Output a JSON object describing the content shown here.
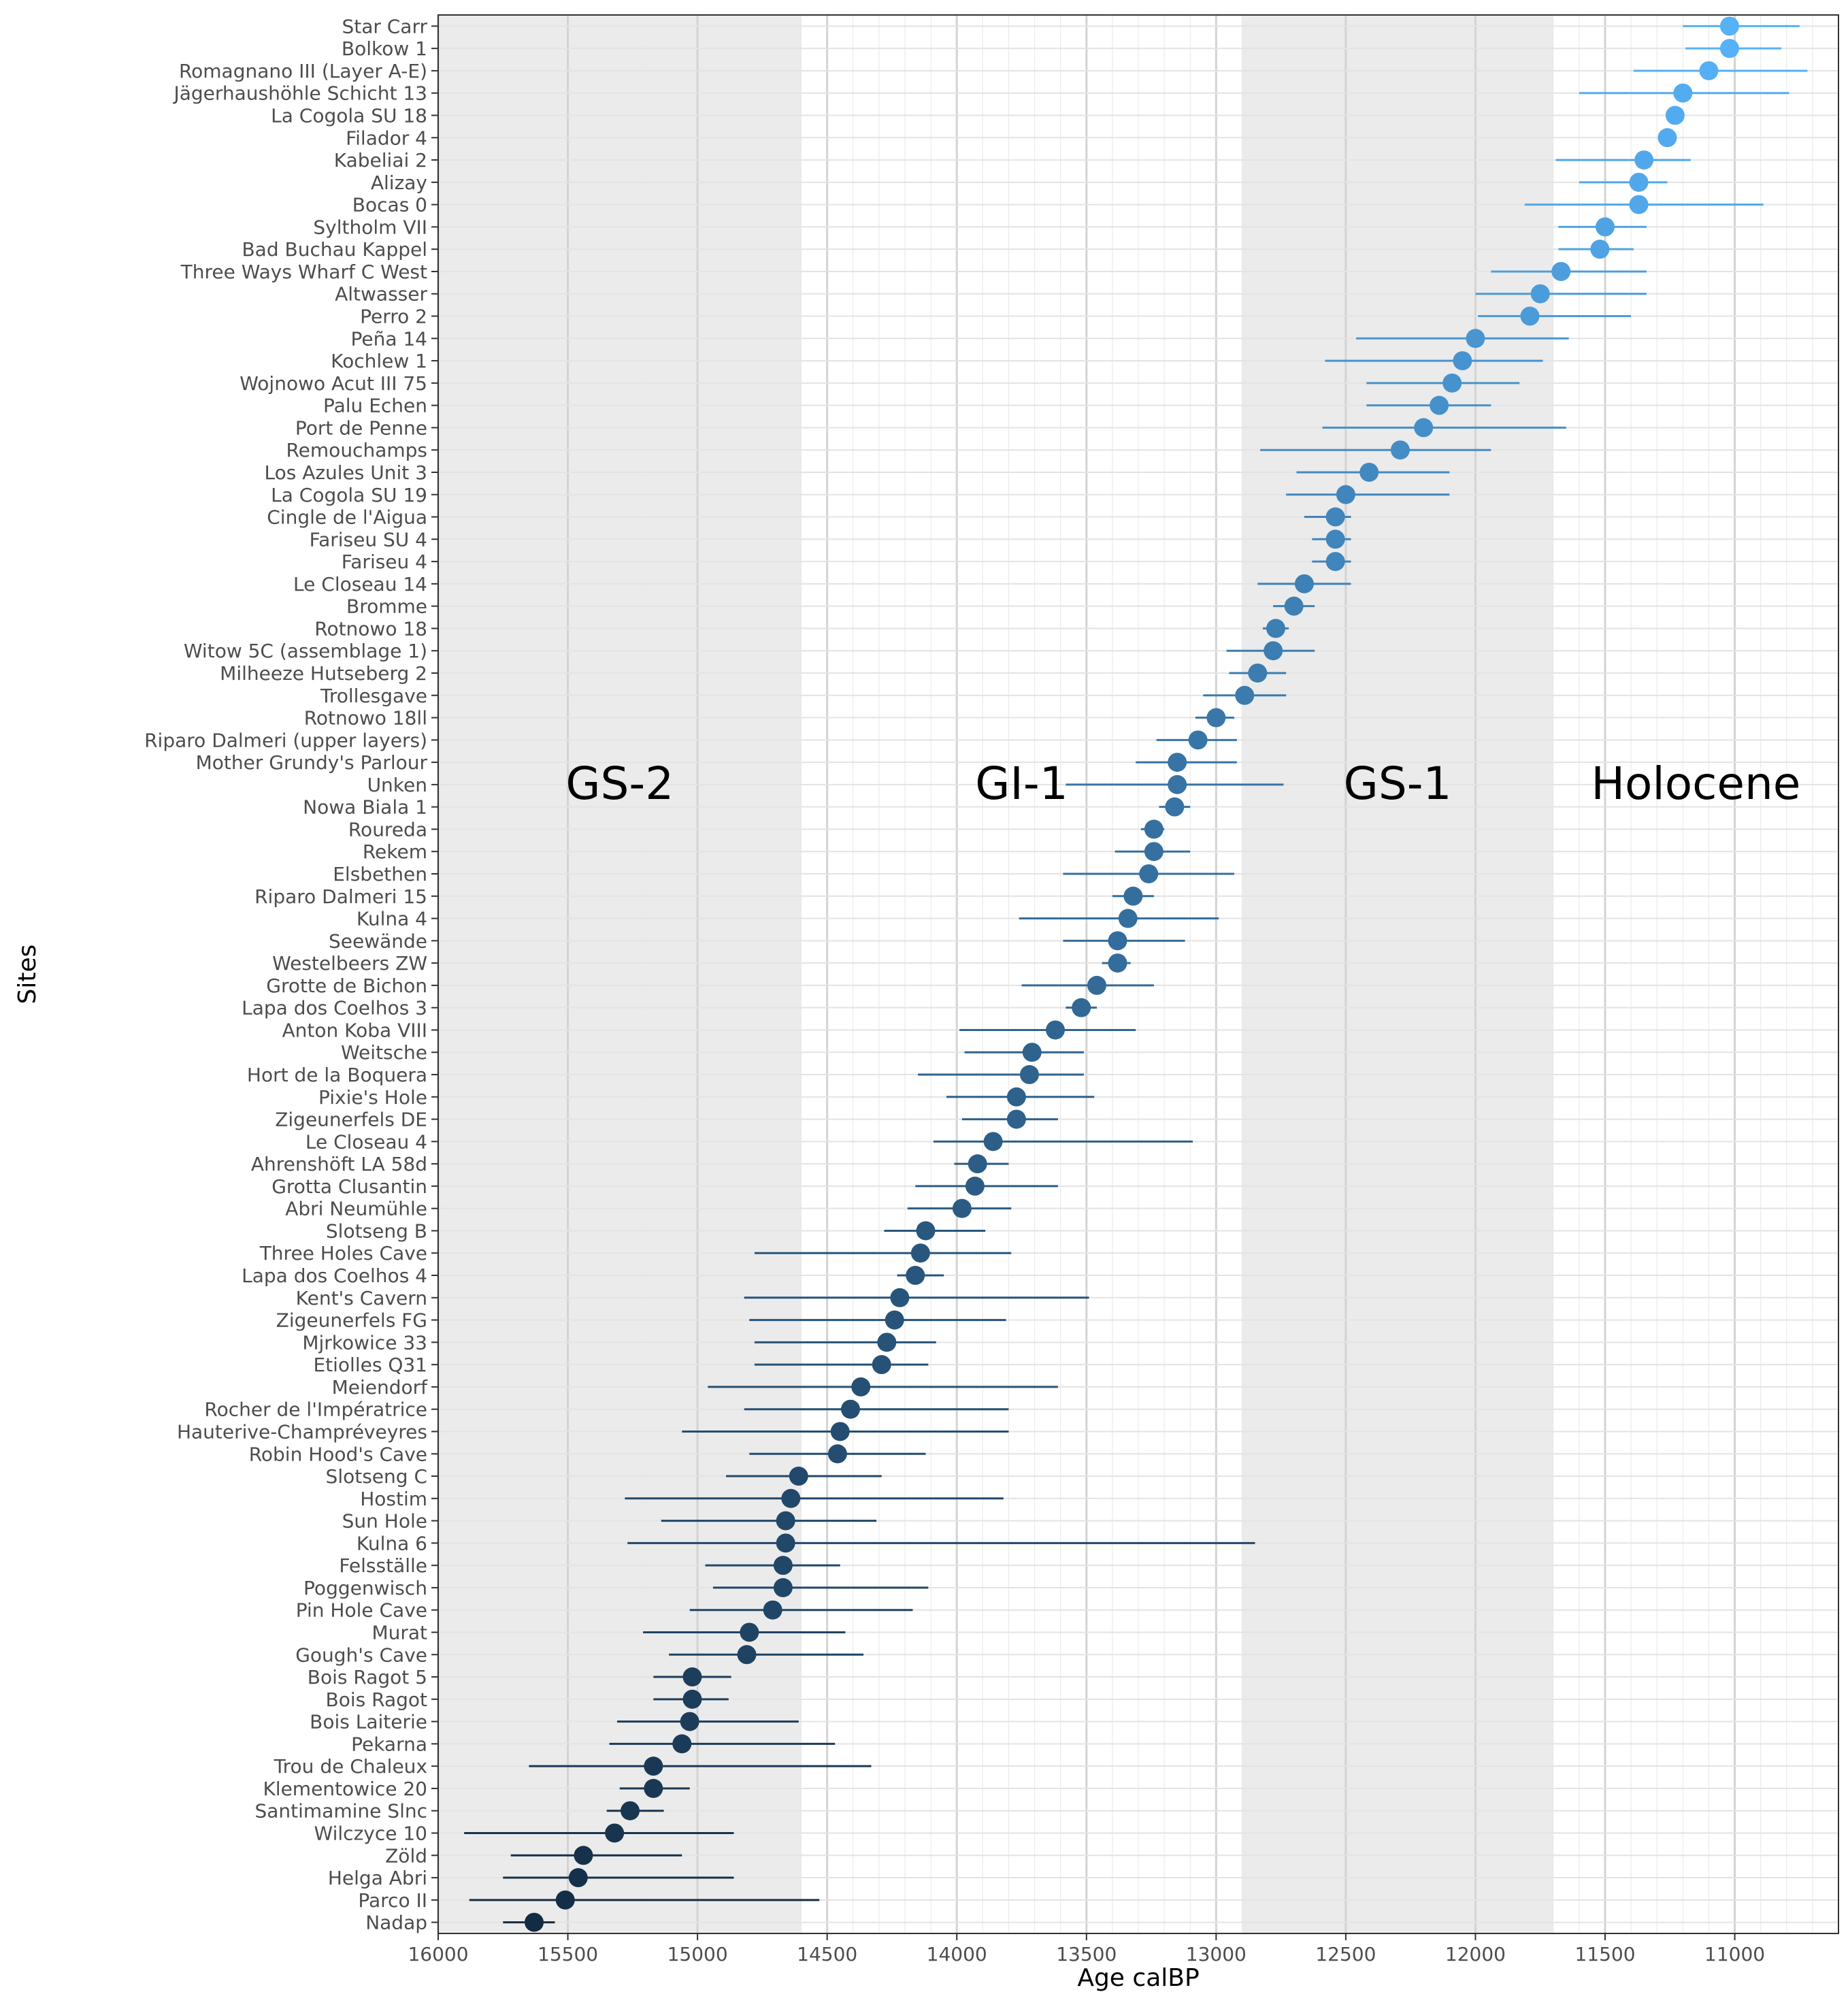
{
  "chart_data": {
    "type": "scatter",
    "title": "",
    "xlabel": "Age calBP",
    "ylabel": "Sites",
    "x_reversed": true,
    "xlim": [
      16000,
      10600
    ],
    "x_ticks": [
      16000,
      15500,
      15000,
      14500,
      14000,
      13500,
      13000,
      12500,
      12000,
      11500,
      11000
    ],
    "grid": true,
    "color_range": [
      "#132b43",
      "#56b1f7"
    ],
    "bands": [
      {
        "label": "GS-2",
        "from": 16000,
        "to": 14600,
        "shaded": true
      },
      {
        "label": "GI-1",
        "from": 14600,
        "to": 12900,
        "shaded": false
      },
      {
        "label": "GS-1",
        "from": 12900,
        "to": 11700,
        "shaded": true
      },
      {
        "label": "Holocene",
        "from": 11700,
        "to": 10600,
        "shaded": false
      }
    ],
    "points": [
      {
        "site": "Star Carr",
        "age": 11020,
        "min": 10750,
        "max": 11200
      },
      {
        "site": "Bolkow 1",
        "age": 11020,
        "min": 10820,
        "max": 11190
      },
      {
        "site": "Romagnano III (Layer A-E)",
        "age": 11100,
        "min": 10720,
        "max": 11390
      },
      {
        "site": "Jägerhaushöhle Schicht 13",
        "age": 11200,
        "min": 10790,
        "max": 11600
      },
      {
        "site": "La Cogola SU 18",
        "age": 11230,
        "min": 11230,
        "max": 11230
      },
      {
        "site": "Filador 4",
        "age": 11260,
        "min": 11260,
        "max": 11260
      },
      {
        "site": "Kabeliai 2",
        "age": 11350,
        "min": 11170,
        "max": 11690
      },
      {
        "site": "Alizay",
        "age": 11370,
        "min": 11260,
        "max": 11600
      },
      {
        "site": "Bocas 0",
        "age": 11370,
        "min": 10890,
        "max": 11810
      },
      {
        "site": "Syltholm VII",
        "age": 11500,
        "min": 11340,
        "max": 11680
      },
      {
        "site": "Bad Buchau Kappel",
        "age": 11520,
        "min": 11390,
        "max": 11680
      },
      {
        "site": "Three Ways Wharf C West",
        "age": 11670,
        "min": 11340,
        "max": 11940
      },
      {
        "site": "Altwasser",
        "age": 11750,
        "min": 11340,
        "max": 12000
      },
      {
        "site": "Perro 2",
        "age": 11790,
        "min": 11400,
        "max": 11990
      },
      {
        "site": "Peña 14",
        "age": 12000,
        "min": 11640,
        "max": 12460
      },
      {
        "site": "Kochlew 1",
        "age": 12050,
        "min": 11740,
        "max": 12580
      },
      {
        "site": "Wojnowo Acut III 75",
        "age": 12090,
        "min": 11830,
        "max": 12420
      },
      {
        "site": "Palu Echen",
        "age": 12140,
        "min": 11940,
        "max": 12420
      },
      {
        "site": "Port de Penne",
        "age": 12200,
        "min": 11650,
        "max": 12590
      },
      {
        "site": "Remouchamps",
        "age": 12290,
        "min": 11940,
        "max": 12830
      },
      {
        "site": "Los Azules Unit 3",
        "age": 12410,
        "min": 12100,
        "max": 12690
      },
      {
        "site": "La Cogola SU 19",
        "age": 12500,
        "min": 12100,
        "max": 12730
      },
      {
        "site": "Cingle de l'Aigua",
        "age": 12540,
        "min": 12480,
        "max": 12660
      },
      {
        "site": "Fariseu SU 4",
        "age": 12540,
        "min": 12480,
        "max": 12630
      },
      {
        "site": "Fariseu 4",
        "age": 12540,
        "min": 12480,
        "max": 12630
      },
      {
        "site": "Le Closeau 14",
        "age": 12660,
        "min": 12480,
        "max": 12840
      },
      {
        "site": "Bromme",
        "age": 12700,
        "min": 12620,
        "max": 12780
      },
      {
        "site": "Rotnowo 18",
        "age": 12770,
        "min": 12720,
        "max": 12820
      },
      {
        "site": "Witow 5C (assemblage 1)",
        "age": 12780,
        "min": 12620,
        "max": 12960
      },
      {
        "site": "Milheeze Hutseberg 2",
        "age": 12840,
        "min": 12730,
        "max": 12950
      },
      {
        "site": "Trollesgave",
        "age": 12890,
        "min": 12730,
        "max": 13050
      },
      {
        "site": "Rotnowo 18ll",
        "age": 13000,
        "min": 12930,
        "max": 13080
      },
      {
        "site": "Riparo Dalmeri (upper layers)",
        "age": 13070,
        "min": 12920,
        "max": 13230
      },
      {
        "site": "Mother Grundy's Parlour",
        "age": 13150,
        "min": 12920,
        "max": 13310
      },
      {
        "site": "Unken",
        "age": 13150,
        "min": 12740,
        "max": 13580
      },
      {
        "site": "Nowa Biala 1",
        "age": 13160,
        "min": 13100,
        "max": 13220
      },
      {
        "site": "Roureda",
        "age": 13240,
        "min": 13200,
        "max": 13290
      },
      {
        "site": "Rekem",
        "age": 13240,
        "min": 13100,
        "max": 13390
      },
      {
        "site": "Elsbethen",
        "age": 13260,
        "min": 12930,
        "max": 13590
      },
      {
        "site": "Riparo Dalmeri 15",
        "age": 13320,
        "min": 13240,
        "max": 13400
      },
      {
        "site": "Kulna 4",
        "age": 13340,
        "min": 12990,
        "max": 13760
      },
      {
        "site": "Seewände",
        "age": 13380,
        "min": 13120,
        "max": 13590
      },
      {
        "site": "Westelbeers ZW",
        "age": 13380,
        "min": 13330,
        "max": 13440
      },
      {
        "site": "Grotte de Bichon",
        "age": 13460,
        "min": 13240,
        "max": 13750
      },
      {
        "site": "Lapa dos Coelhos 3",
        "age": 13520,
        "min": 13460,
        "max": 13580
      },
      {
        "site": "Anton Koba VIII",
        "age": 13620,
        "min": 13310,
        "max": 13990
      },
      {
        "site": "Weitsche",
        "age": 13710,
        "min": 13510,
        "max": 13970
      },
      {
        "site": "Hort de la Boquera",
        "age": 13720,
        "min": 13510,
        "max": 14150
      },
      {
        "site": "Pixie's Hole",
        "age": 13770,
        "min": 13470,
        "max": 14040
      },
      {
        "site": "Zigeunerfels DE",
        "age": 13770,
        "min": 13610,
        "max": 13980
      },
      {
        "site": "Le Closeau 4",
        "age": 13860,
        "min": 13090,
        "max": 14090
      },
      {
        "site": "Ahrenshöft LA 58d",
        "age": 13920,
        "min": 13800,
        "max": 14010
      },
      {
        "site": "Grotta Clusantin",
        "age": 13930,
        "min": 13610,
        "max": 14160
      },
      {
        "site": "Abri Neumühle",
        "age": 13980,
        "min": 13790,
        "max": 14190
      },
      {
        "site": "Slotseng B",
        "age": 14120,
        "min": 13890,
        "max": 14280
      },
      {
        "site": "Three Holes Cave",
        "age": 14140,
        "min": 13790,
        "max": 14780
      },
      {
        "site": "Lapa dos Coelhos 4",
        "age": 14160,
        "min": 14050,
        "max": 14230
      },
      {
        "site": "Kent's Cavern",
        "age": 14220,
        "min": 13490,
        "max": 14820
      },
      {
        "site": "Zigeunerfels FG",
        "age": 14240,
        "min": 13810,
        "max": 14800
      },
      {
        "site": "Mjrkowice 33",
        "age": 14270,
        "min": 14080,
        "max": 14780
      },
      {
        "site": "Etiolles Q31",
        "age": 14290,
        "min": 14110,
        "max": 14780
      },
      {
        "site": "Meiendorf",
        "age": 14370,
        "min": 13610,
        "max": 14960
      },
      {
        "site": "Rocher de l'Impératrice",
        "age": 14410,
        "min": 13800,
        "max": 14820
      },
      {
        "site": "Hauterive-Champréveyres",
        "age": 14450,
        "min": 13800,
        "max": 15060
      },
      {
        "site": "Robin Hood's Cave",
        "age": 14460,
        "min": 14120,
        "max": 14800
      },
      {
        "site": "Slotseng C",
        "age": 14610,
        "min": 14290,
        "max": 14890
      },
      {
        "site": "Hostim",
        "age": 14640,
        "min": 13820,
        "max": 15280
      },
      {
        "site": "Sun Hole",
        "age": 14660,
        "min": 14310,
        "max": 15140
      },
      {
        "site": "Kulna 6",
        "age": 14660,
        "min": 12850,
        "max": 15270
      },
      {
        "site": "Felsställe",
        "age": 14670,
        "min": 14450,
        "max": 14970
      },
      {
        "site": "Poggenwisch",
        "age": 14670,
        "min": 14110,
        "max": 14940
      },
      {
        "site": "Pin Hole Cave",
        "age": 14710,
        "min": 14170,
        "max": 15030
      },
      {
        "site": "Murat",
        "age": 14800,
        "min": 14430,
        "max": 15210
      },
      {
        "site": "Gough's Cave",
        "age": 14810,
        "min": 14360,
        "max": 15110
      },
      {
        "site": "Bois Ragot 5",
        "age": 15020,
        "min": 14870,
        "max": 15170
      },
      {
        "site": "Bois Ragot",
        "age": 15020,
        "min": 14880,
        "max": 15170
      },
      {
        "site": "Bois Laiterie",
        "age": 15030,
        "min": 14610,
        "max": 15310
      },
      {
        "site": "Pekarna",
        "age": 15060,
        "min": 14470,
        "max": 15340
      },
      {
        "site": "Trou de Chaleux",
        "age": 15170,
        "min": 14330,
        "max": 15650
      },
      {
        "site": "Klementowice 20",
        "age": 15170,
        "min": 15030,
        "max": 15300
      },
      {
        "site": "Santimamine Slnc",
        "age": 15260,
        "min": 15130,
        "max": 15350
      },
      {
        "site": "Wilczyce 10",
        "age": 15320,
        "min": 14860,
        "max": 15900
      },
      {
        "site": "Zöld",
        "age": 15440,
        "min": 15060,
        "max": 15720
      },
      {
        "site": "Helga Abri",
        "age": 15460,
        "min": 14860,
        "max": 15750
      },
      {
        "site": "Parco II",
        "age": 15510,
        "min": 14530,
        "max": 15880
      },
      {
        "site": "Nadap",
        "age": 15630,
        "min": 15550,
        "max": 15750
      }
    ]
  }
}
